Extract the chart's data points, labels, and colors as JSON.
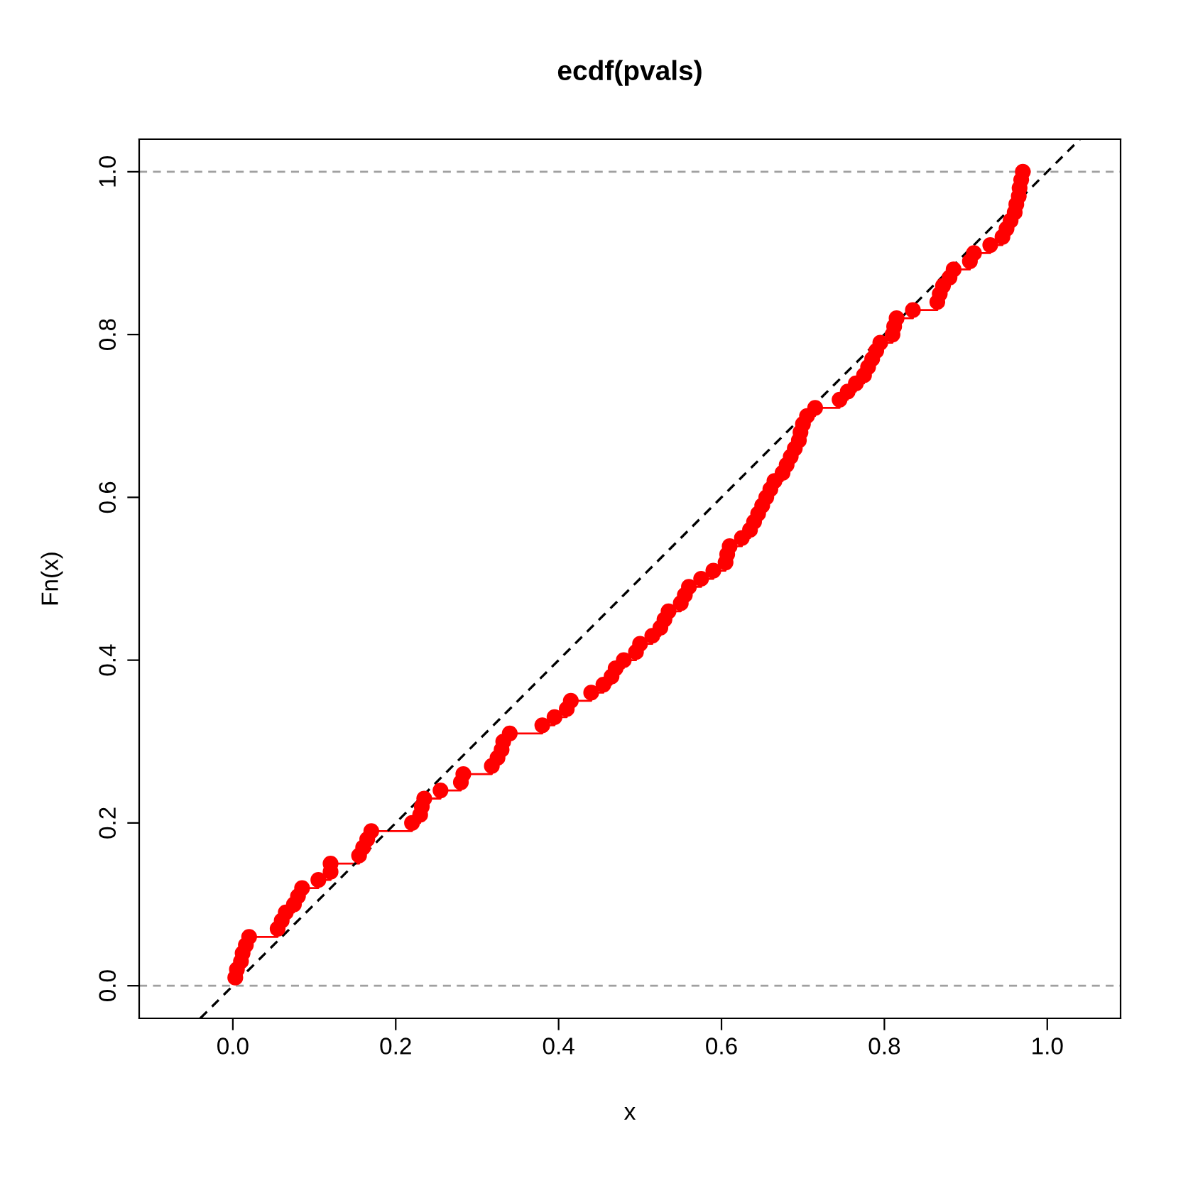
{
  "chart_data": {
    "type": "step",
    "title": "ecdf(pvals)",
    "xlabel": "x",
    "ylabel": "Fn(x)",
    "xlim": [
      -0.115,
      1.09
    ],
    "ylim": [
      -0.04,
      1.04
    ],
    "xticks": [
      {
        "value": 0,
        "label": "0.0"
      },
      0.2,
      0.4,
      0.6,
      0.8,
      {
        "value": 1,
        "label": "1.0"
      }
    ],
    "yticks": [
      {
        "value": 0,
        "label": "0.0"
      },
      0.2,
      0.4,
      0.6,
      0.8,
      {
        "value": 1,
        "label": "1.0"
      }
    ],
    "grid": false,
    "legend": false,
    "marker": "circle",
    "ref_lines": [
      {
        "axis": "y",
        "value": 0,
        "color": "#a0a0a0",
        "line_style": "dashed"
      },
      {
        "axis": "y",
        "value": 1,
        "color": "#a0a0a0",
        "line_style": "dashed"
      }
    ],
    "series": [
      {
        "color": "#ff0000",
        "line_style": "solid",
        "x": [
          0.003,
          0.005,
          0.01,
          0.012,
          0.016,
          0.02,
          0.055,
          0.06,
          0.065,
          0.075,
          0.08,
          0.085,
          0.105,
          0.12,
          0.12,
          0.155,
          0.16,
          0.165,
          0.17,
          0.22,
          0.23,
          0.232,
          0.235,
          0.255,
          0.28,
          0.283,
          0.318,
          0.325,
          0.33,
          0.332,
          0.34,
          0.38,
          0.395,
          0.41,
          0.415,
          0.44,
          0.455,
          0.465,
          0.47,
          0.48,
          0.495,
          0.5,
          0.515,
          0.525,
          0.53,
          0.535,
          0.55,
          0.555,
          0.56,
          0.575,
          0.59,
          0.605,
          0.607,
          0.61,
          0.625,
          0.635,
          0.64,
          0.645,
          0.65,
          0.655,
          0.66,
          0.665,
          0.675,
          0.68,
          0.685,
          0.69,
          0.695,
          0.697,
          0.7,
          0.705,
          0.715,
          0.745,
          0.755,
          0.765,
          0.775,
          0.78,
          0.785,
          0.79,
          0.795,
          0.81,
          0.812,
          0.815,
          0.835,
          0.865,
          0.868,
          0.872,
          0.88,
          0.885,
          0.905,
          0.91,
          0.93,
          0.945,
          0.95,
          0.955,
          0.96,
          0.962,
          0.965,
          0.966,
          0.968,
          0.97
        ],
        "values": [
          0.01,
          0.02,
          0.03,
          0.04,
          0.05,
          0.06,
          0.07,
          0.08,
          0.09,
          0.1,
          0.11,
          0.12,
          0.13,
          0.14,
          0.15,
          0.16,
          0.17,
          0.18,
          0.19,
          0.2,
          0.21,
          0.22,
          0.23,
          0.24,
          0.25,
          0.26,
          0.27,
          0.28,
          0.29,
          0.3,
          0.31,
          0.32,
          0.33,
          0.34,
          0.35,
          0.36,
          0.37,
          0.38,
          0.39,
          0.4,
          0.41,
          0.42,
          0.43,
          0.44,
          0.45,
          0.46,
          0.47,
          0.48,
          0.49,
          0.5,
          0.51,
          0.52,
          0.53,
          0.54,
          0.55,
          0.56,
          0.57,
          0.58,
          0.59,
          0.6,
          0.61,
          0.62,
          0.63,
          0.64,
          0.65,
          0.66,
          0.67,
          0.68,
          0.69,
          0.7,
          0.71,
          0.72,
          0.73,
          0.74,
          0.75,
          0.76,
          0.77,
          0.78,
          0.79,
          0.8,
          0.81,
          0.82,
          0.83,
          0.84,
          0.85,
          0.86,
          0.87,
          0.88,
          0.89,
          0.9,
          0.91,
          0.92,
          0.93,
          0.94,
          0.95,
          0.96,
          0.97,
          0.98,
          0.99,
          1.0
        ]
      },
      {
        "type": "line",
        "color": "#000000",
        "marker": "none",
        "line_style": "dashed",
        "x": [
          -0.04,
          1.04
        ],
        "values": [
          -0.04,
          1.04
        ]
      }
    ]
  }
}
